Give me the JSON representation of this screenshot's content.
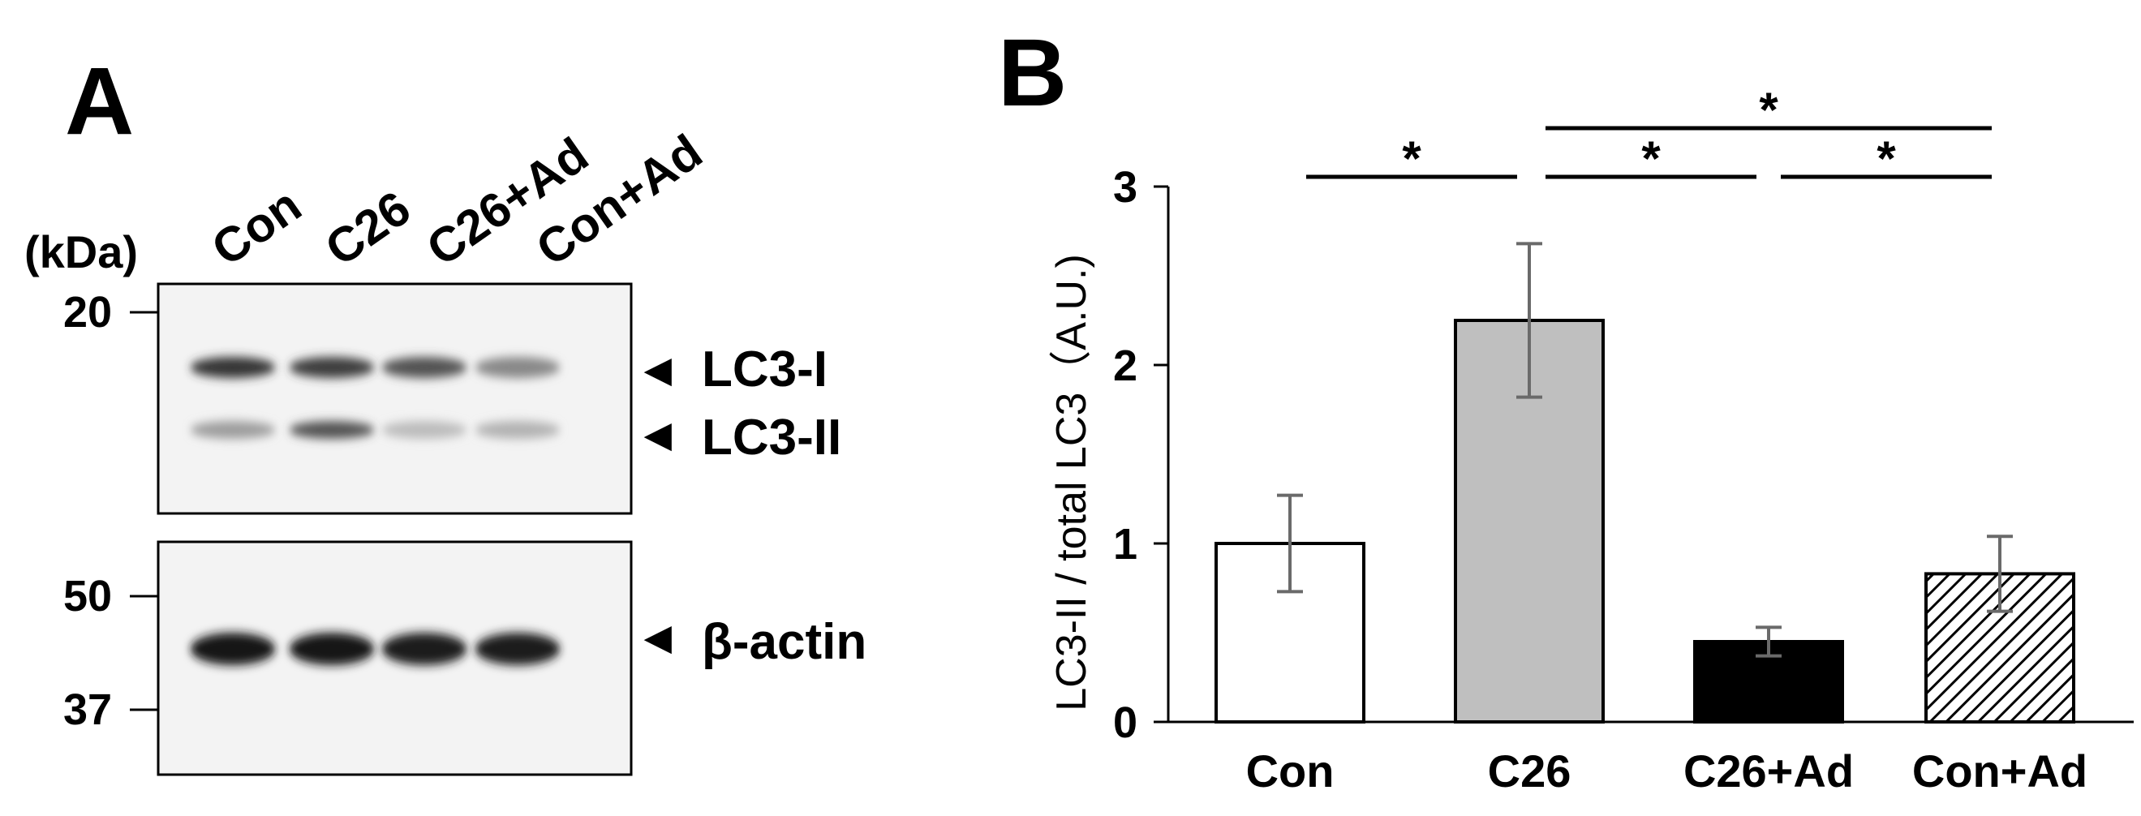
{
  "panel_a": {
    "letter": "A",
    "kda_label": "(kDa)",
    "lanes": [
      "Con",
      "C26",
      "C26+Ad",
      "Con+Ad"
    ],
    "blot_top": {
      "markers": [
        "20"
      ],
      "bands": [
        {
          "label": "LC3-I",
          "intensity": [
            0.85,
            0.8,
            0.7,
            0.45
          ]
        },
        {
          "label": "LC3-II",
          "intensity": [
            0.35,
            0.7,
            0.2,
            0.25
          ]
        }
      ]
    },
    "blot_bottom": {
      "markers": [
        "50",
        "37"
      ],
      "bands": [
        {
          "label": "β-actin",
          "intensity": [
            1.0,
            1.0,
            0.95,
            0.95
          ]
        }
      ]
    }
  },
  "panel_b": {
    "letter": "B",
    "significance_marker": "*"
  },
  "chart_data": {
    "type": "bar",
    "categories": [
      "Con",
      "C26",
      "C26+Ad",
      "Con+Ad"
    ],
    "values": [
      1.0,
      2.25,
      0.45,
      0.83
    ],
    "errors": [
      0.27,
      0.43,
      0.08,
      0.21
    ],
    "ylabel": "LC3-II / total LC3（A.U.)",
    "xlabel": "",
    "ylim": [
      0,
      3
    ],
    "yticks": [
      0,
      1,
      2,
      3
    ],
    "grid": false,
    "bar_styles": [
      "white",
      "gray",
      "black",
      "hatched"
    ],
    "bar_colors": [
      "#ffffff",
      "#bfbfbf",
      "#000000",
      "#ffffff"
    ],
    "significance": [
      {
        "from": 0,
        "to": 1,
        "label": "*"
      },
      {
        "from": 1,
        "to": 2,
        "label": "*"
      },
      {
        "from": 2,
        "to": 3,
        "label": "*"
      },
      {
        "from": 1,
        "to": 3,
        "label": "*"
      }
    ]
  }
}
